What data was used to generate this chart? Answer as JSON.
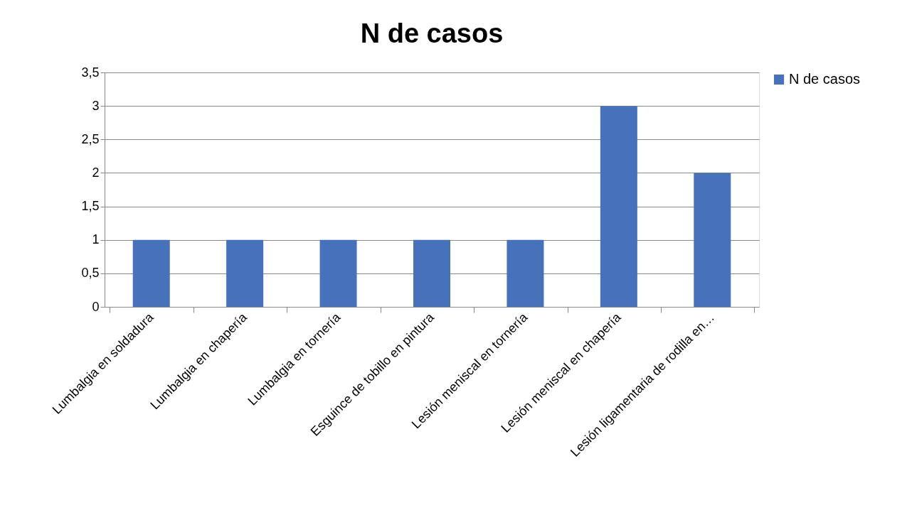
{
  "chart_data": {
    "type": "bar",
    "title": "N de casos",
    "categories": [
      "Lumbalgia en soldadura",
      "Lumbalgia en chapería",
      "Lumbalgia en tornería",
      "Esguince de tobillo en pintura",
      "Lesión meniscal en tornería",
      "Lesión meniscal en chapería",
      "Lesión ligamentaria de rodilla en…"
    ],
    "series": [
      {
        "name": "N de casos",
        "color": "#4672bb",
        "values": [
          1,
          1,
          1,
          1,
          1,
          3,
          2
        ]
      }
    ],
    "ylim": [
      0,
      3.5
    ],
    "yticks": [
      0,
      {
        "value": 0.5,
        "label": "0,5"
      },
      1,
      {
        "value": 1.5,
        "label": "1,5"
      },
      2,
      {
        "value": 2.5,
        "label": "2,5"
      },
      3,
      {
        "value": 3.5,
        "label": "3,5"
      }
    ],
    "grid": "y",
    "legend": "right"
  }
}
